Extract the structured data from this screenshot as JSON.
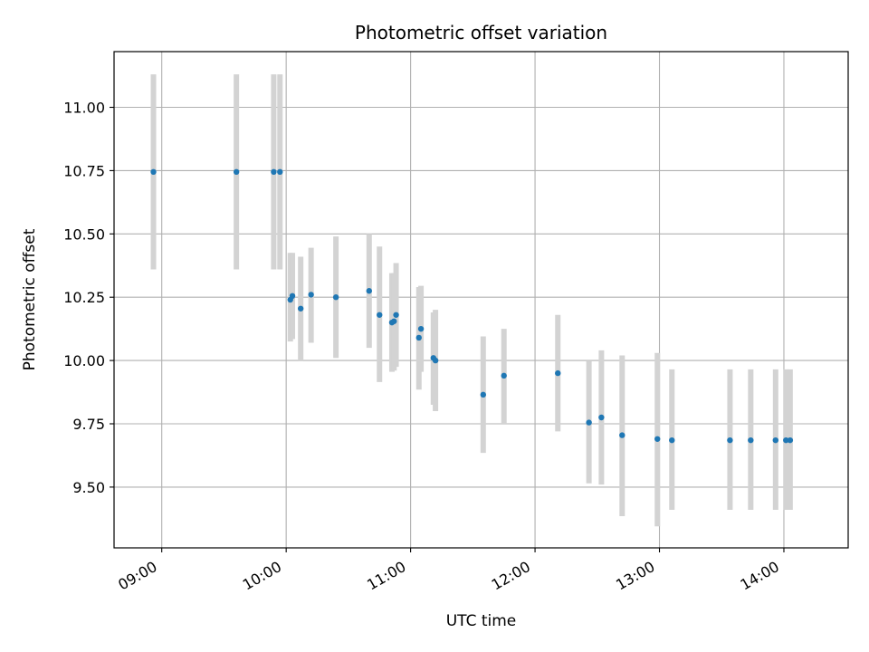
{
  "chart_data": {
    "type": "scatter",
    "title": "Photometric offset variation",
    "xlabel": "UTC time",
    "ylabel": "Photometric offset",
    "x_is_time": true,
    "xlim": [
      "08:37",
      "14:31"
    ],
    "ylim": [
      9.26,
      11.22
    ],
    "x_ticks": [
      "09:00",
      "10:00",
      "11:00",
      "12:00",
      "13:00",
      "14:00"
    ],
    "y_ticks": [
      "9.50",
      "9.75",
      "10.00",
      "10.25",
      "10.50",
      "10.75",
      "11.00"
    ],
    "grid": true,
    "colors": {
      "point": "#1f77b4",
      "errorbar": "#d3d3d3",
      "grid": "#b0b0b0"
    },
    "points": [
      {
        "x": "08:56",
        "y": 10.745,
        "low": 10.36,
        "high": 11.13
      },
      {
        "x": "09:36",
        "y": 10.745,
        "low": 10.36,
        "high": 11.13
      },
      {
        "x": "09:54",
        "y": 10.745,
        "low": 10.36,
        "high": 11.13
      },
      {
        "x": "09:57",
        "y": 10.745,
        "low": 10.36,
        "high": 11.13
      },
      {
        "x": "10:02",
        "y": 10.24,
        "low": 10.075,
        "high": 10.425
      },
      {
        "x": "10:03",
        "y": 10.255,
        "low": 10.085,
        "high": 10.425
      },
      {
        "x": "10:07",
        "y": 10.205,
        "low": 10.0,
        "high": 10.41
      },
      {
        "x": "10:12",
        "y": 10.26,
        "low": 10.07,
        "high": 10.445
      },
      {
        "x": "10:24",
        "y": 10.25,
        "low": 10.01,
        "high": 10.49
      },
      {
        "x": "10:40",
        "y": 10.275,
        "low": 10.05,
        "high": 10.5
      },
      {
        "x": "10:45",
        "y": 10.18,
        "low": 9.915,
        "high": 10.45
      },
      {
        "x": "10:51",
        "y": 10.15,
        "low": 9.955,
        "high": 10.345
      },
      {
        "x": "10:52",
        "y": 10.155,
        "low": 9.96,
        "high": 10.345
      },
      {
        "x": "10:53",
        "y": 10.18,
        "low": 9.975,
        "high": 10.385
      },
      {
        "x": "11:04",
        "y": 10.09,
        "low": 9.885,
        "high": 10.29
      },
      {
        "x": "11:05",
        "y": 10.125,
        "low": 9.955,
        "high": 10.295
      },
      {
        "x": "11:11",
        "y": 10.01,
        "low": 9.825,
        "high": 10.19
      },
      {
        "x": "11:12",
        "y": 10.0,
        "low": 9.8,
        "high": 10.2
      },
      {
        "x": "11:35",
        "y": 9.865,
        "low": 9.635,
        "high": 10.095
      },
      {
        "x": "11:45",
        "y": 9.94,
        "low": 9.75,
        "high": 10.125
      },
      {
        "x": "12:11",
        "y": 9.95,
        "low": 9.72,
        "high": 10.18
      },
      {
        "x": "12:26",
        "y": 9.755,
        "low": 9.515,
        "high": 10.0
      },
      {
        "x": "12:32",
        "y": 9.775,
        "low": 9.51,
        "high": 10.04
      },
      {
        "x": "12:42",
        "y": 9.705,
        "low": 9.385,
        "high": 10.02
      },
      {
        "x": "12:59",
        "y": 9.69,
        "low": 9.345,
        "high": 10.03
      },
      {
        "x": "13:06",
        "y": 9.685,
        "low": 9.41,
        "high": 9.965
      },
      {
        "x": "13:34",
        "y": 9.685,
        "low": 9.41,
        "high": 9.965
      },
      {
        "x": "13:44",
        "y": 9.685,
        "low": 9.41,
        "high": 9.965
      },
      {
        "x": "13:56",
        "y": 9.685,
        "low": 9.41,
        "high": 9.965
      },
      {
        "x": "14:01",
        "y": 9.685,
        "low": 9.41,
        "high": 9.965
      },
      {
        "x": "14:03",
        "y": 9.685,
        "low": 9.41,
        "high": 9.965
      }
    ]
  }
}
